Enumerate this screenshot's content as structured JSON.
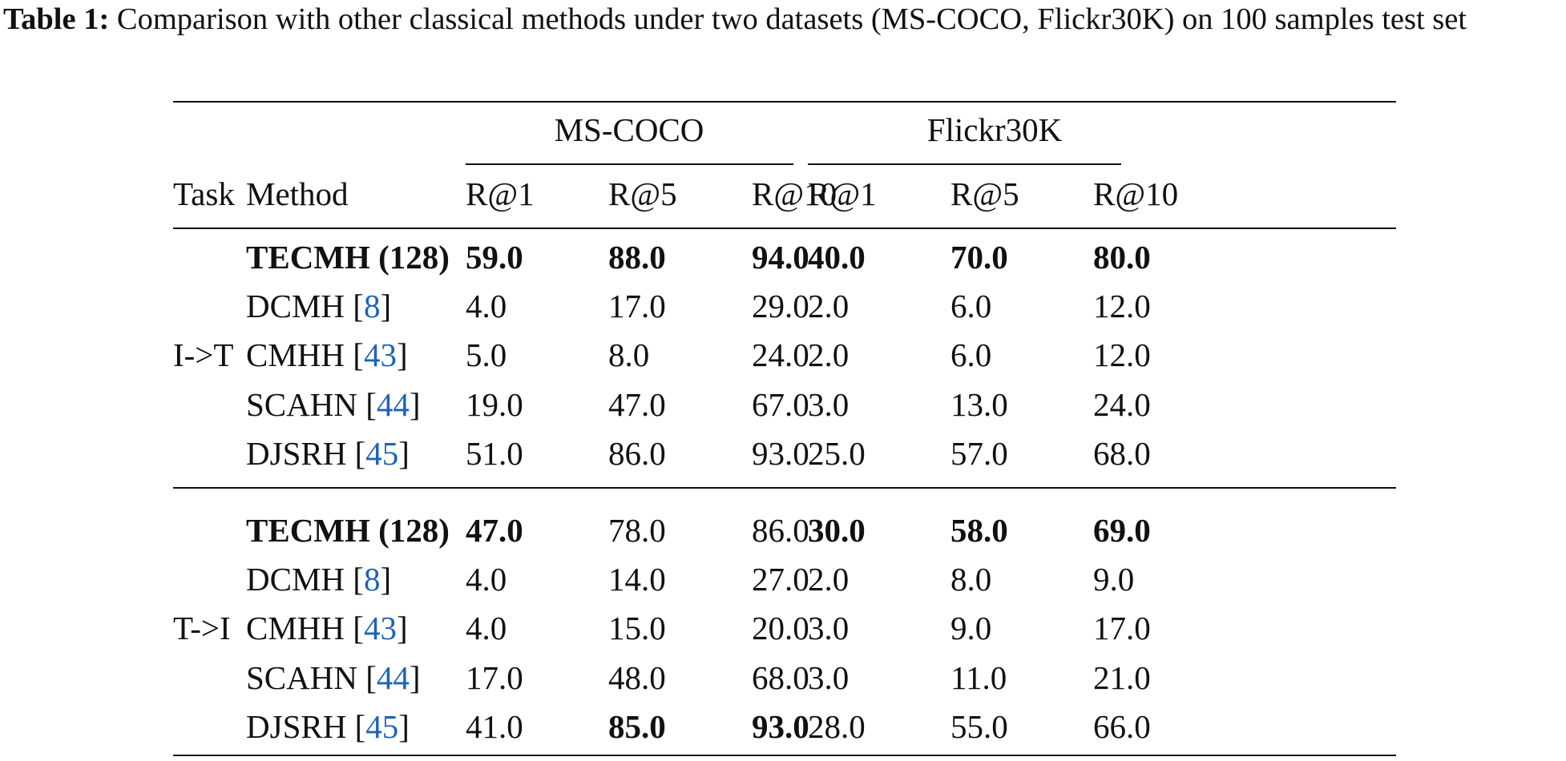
{
  "caption": {
    "label": "Table 1:",
    "text": " Comparison with other classical methods under two datasets (MS-COCO, Flickr30K) on 100 samples test set"
  },
  "table": {
    "group_headers": [
      "MS-COCO",
      "Flickr30K"
    ],
    "col_headers": [
      "Task",
      "Method",
      "R@1",
      "R@5",
      "R@10",
      "R@1",
      "R@5",
      "R@10"
    ],
    "sections": [
      {
        "task": "I->T",
        "rows": [
          {
            "method": "TECMH (128)",
            "ref": "",
            "method_bold": true,
            "values": [
              "59.0",
              "88.0",
              "94.0",
              "40.0",
              "70.0",
              "80.0"
            ],
            "bold": [
              true,
              true,
              true,
              true,
              true,
              true
            ]
          },
          {
            "method": "DCMH",
            "ref": "8",
            "method_bold": false,
            "values": [
              "4.0",
              "17.0",
              "29.0",
              "2.0",
              "6.0",
              "12.0"
            ],
            "bold": [
              false,
              false,
              false,
              false,
              false,
              false
            ]
          },
          {
            "method": "CMHH",
            "ref": "43",
            "method_bold": false,
            "values": [
              "5.0",
              "8.0",
              "24.0",
              "2.0",
              "6.0",
              "12.0"
            ],
            "bold": [
              false,
              false,
              false,
              false,
              false,
              false
            ]
          },
          {
            "method": "SCAHN",
            "ref": "44",
            "method_bold": false,
            "values": [
              "19.0",
              "47.0",
              "67.0",
              "3.0",
              "13.0",
              "24.0"
            ],
            "bold": [
              false,
              false,
              false,
              false,
              false,
              false
            ]
          },
          {
            "method": "DJSRH",
            "ref": "45",
            "method_bold": false,
            "values": [
              "51.0",
              "86.0",
              "93.0",
              "25.0",
              "57.0",
              "68.0"
            ],
            "bold": [
              false,
              false,
              false,
              false,
              false,
              false
            ]
          }
        ]
      },
      {
        "task": "T->I",
        "rows": [
          {
            "method": "TECMH (128)",
            "ref": "",
            "method_bold": true,
            "values": [
              "47.0",
              "78.0",
              "86.0",
              "30.0",
              "58.0",
              "69.0"
            ],
            "bold": [
              true,
              false,
              false,
              true,
              true,
              true
            ]
          },
          {
            "method": "DCMH",
            "ref": "8",
            "method_bold": false,
            "values": [
              "4.0",
              "14.0",
              "27.0",
              "2.0",
              "8.0",
              "9.0"
            ],
            "bold": [
              false,
              false,
              false,
              false,
              false,
              false
            ]
          },
          {
            "method": "CMHH",
            "ref": "43",
            "method_bold": false,
            "values": [
              "4.0",
              "15.0",
              "20.0",
              "3.0",
              "9.0",
              "17.0"
            ],
            "bold": [
              false,
              false,
              false,
              false,
              false,
              false
            ]
          },
          {
            "method": "SCAHN",
            "ref": "44",
            "method_bold": false,
            "values": [
              "17.0",
              "48.0",
              "68.0",
              "3.0",
              "11.0",
              "21.0"
            ],
            "bold": [
              false,
              false,
              false,
              false,
              false,
              false
            ]
          },
          {
            "method": "DJSRH",
            "ref": "45",
            "method_bold": false,
            "values": [
              "41.0",
              "85.0",
              "93.0",
              "28.0",
              "55.0",
              "66.0"
            ],
            "bold": [
              false,
              true,
              true,
              false,
              false,
              false
            ]
          }
        ]
      }
    ]
  }
}
